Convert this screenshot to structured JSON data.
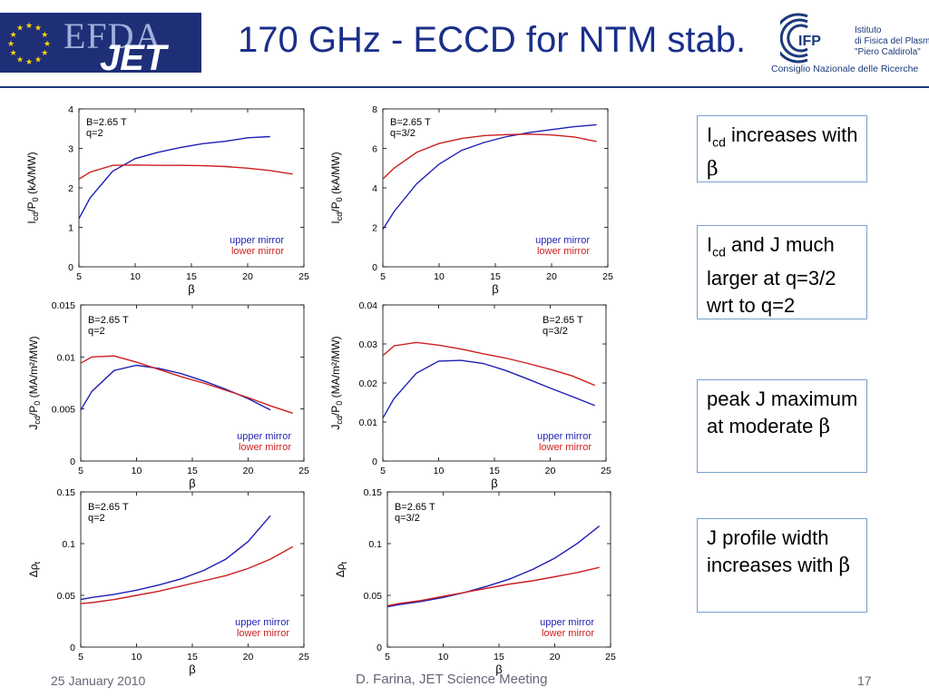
{
  "slide": {
    "title": "170 GHz - ECCD for NTM stab.",
    "logo_left": {
      "efda": "EFDA",
      "jet": "JET"
    },
    "logo_right": {
      "mark": "IFP",
      "line1": "Istituto",
      "line2": "di Fisica del Plasma",
      "line3": "\"Piero Caldirola\"",
      "line4": "Consiglio Nazionale delle Ricerche"
    },
    "footer": {
      "date": "25 January 2010",
      "center": "D. Farina, JET Science Meeting",
      "page": "17"
    },
    "colors": {
      "title": "#1a2f8a",
      "upper_mirror": "#1f1fb4",
      "lower_mirror": "#cc1f1f",
      "note_border": "#7aa0cc"
    }
  },
  "notes": [
    {
      "a": "I",
      "sub": "cd",
      "b": " increases with ",
      "c": "β"
    },
    {
      "a": "I",
      "sub": "cd",
      "b": " and J much larger at q=3/2 wrt to q=2",
      "c": ""
    },
    {
      "a": "",
      "sub": "",
      "b": "peak J maximum at moderate ",
      "c": "β"
    },
    {
      "a": "",
      "sub": "",
      "b": "J profile width increases with ",
      "c": "β"
    }
  ],
  "chart_data": [
    {
      "type": "line",
      "annotation": [
        "B=2.65 T",
        "q=2"
      ],
      "xlabel": "β",
      "ylabel": {
        "main": "I",
        "sub1": "cd",
        "mid": "/P",
        "sub2": "0",
        "tail": " (kA/MW)"
      },
      "xlim": [
        5,
        25
      ],
      "ylim": [
        0,
        4
      ],
      "xticks": [
        "5",
        "10",
        "15",
        "20",
        "25"
      ],
      "yticks": [
        "0",
        "1",
        "2",
        "3",
        "4"
      ],
      "series": [
        {
          "name": "upper mirror",
          "color": "#1f1fb4",
          "x": [
            5,
            6,
            8,
            10,
            12,
            14,
            16,
            18,
            20,
            22
          ],
          "y": [
            1.22,
            1.75,
            2.42,
            2.74,
            2.9,
            3.02,
            3.12,
            3.18,
            3.27,
            3.3
          ]
        },
        {
          "name": "lower mirror",
          "color": "#cc1f1f",
          "x": [
            5,
            6,
            8,
            10,
            12,
            14,
            16,
            18,
            20,
            22,
            24
          ],
          "y": [
            2.22,
            2.4,
            2.57,
            2.58,
            2.57,
            2.57,
            2.56,
            2.54,
            2.5,
            2.44,
            2.35
          ]
        }
      ]
    },
    {
      "type": "line",
      "annotation": [
        "B=2.65 T",
        "q=3/2"
      ],
      "xlabel": "β",
      "ylabel": {
        "main": "I",
        "sub1": "cd",
        "mid": "/P",
        "sub2": "0",
        "tail": " (kA/MW)"
      },
      "xlim": [
        5,
        25
      ],
      "ylim": [
        0,
        8
      ],
      "xticks": [
        "5",
        "10",
        "15",
        "20",
        "25"
      ],
      "yticks": [
        "0",
        "2",
        "4",
        "6",
        "8"
      ],
      "series": [
        {
          "name": "upper mirror",
          "color": "#1f1fb4",
          "x": [
            5,
            6,
            8,
            10,
            12,
            14,
            16,
            18,
            20,
            22,
            24
          ],
          "y": [
            1.9,
            2.8,
            4.2,
            5.2,
            5.9,
            6.3,
            6.6,
            6.8,
            6.95,
            7.1,
            7.2
          ]
        },
        {
          "name": "lower mirror",
          "color": "#cc1f1f",
          "x": [
            5,
            6,
            8,
            10,
            12,
            14,
            16,
            18,
            20,
            22,
            24
          ],
          "y": [
            4.45,
            5.0,
            5.8,
            6.25,
            6.5,
            6.65,
            6.7,
            6.72,
            6.68,
            6.58,
            6.35
          ]
        }
      ]
    },
    {
      "type": "line",
      "annotation": [
        "B=2.65 T",
        "q=2"
      ],
      "xlabel": "β",
      "ylabel": {
        "main": "J",
        "sub1": "cd",
        "mid": "/P",
        "sub2": "0",
        "tail": " (MA/m²/MW)"
      },
      "xlim": [
        5,
        25
      ],
      "ylim": [
        0,
        0.015
      ],
      "xticks": [
        "5",
        "10",
        "15",
        "20",
        "25"
      ],
      "yticks": [
        "0",
        "0.005",
        "0.01",
        "0.015"
      ],
      "series": [
        {
          "name": "upper mirror",
          "color": "#1f1fb4",
          "x": [
            5,
            6,
            8,
            10,
            12,
            14,
            16,
            18,
            20,
            22
          ],
          "y": [
            0.0049,
            0.0067,
            0.0087,
            0.0092,
            0.0089,
            0.0084,
            0.0077,
            0.0069,
            0.006,
            0.0049
          ]
        },
        {
          "name": "lower mirror",
          "color": "#cc1f1f",
          "x": [
            5,
            6,
            8,
            10,
            12,
            14,
            16,
            18,
            20,
            22,
            24
          ],
          "y": [
            0.0094,
            0.01,
            0.0101,
            0.0095,
            0.0088,
            0.0081,
            0.0075,
            0.0068,
            0.0061,
            0.0053,
            0.0046
          ]
        }
      ]
    },
    {
      "type": "line",
      "annotation": [
        "B=2.65 T",
        "q=3/2"
      ],
      "xlabel": "β",
      "ylabel": {
        "main": "J",
        "sub1": "cd",
        "mid": "/P",
        "sub2": "0",
        "tail": " (MA/m²/MW)"
      },
      "xlim": [
        5,
        25
      ],
      "ylim": [
        0,
        0.04
      ],
      "xticks": [
        "5",
        "10",
        "15",
        "20",
        "25"
      ],
      "yticks": [
        "0",
        "0.01",
        "0.02",
        "0.03",
        "0.04"
      ],
      "series": [
        {
          "name": "upper mirror",
          "color": "#1f1fb4",
          "x": [
            5,
            6,
            8,
            10,
            12,
            14,
            16,
            18,
            20,
            22,
            24
          ],
          "y": [
            0.011,
            0.016,
            0.0225,
            0.0256,
            0.0258,
            0.025,
            0.0232,
            0.021,
            0.0187,
            0.0165,
            0.0142
          ]
        },
        {
          "name": "lower mirror",
          "color": "#cc1f1f",
          "x": [
            5,
            6,
            8,
            10,
            12,
            14,
            16,
            18,
            20,
            22,
            24
          ],
          "y": [
            0.027,
            0.0295,
            0.0304,
            0.0297,
            0.0287,
            0.0275,
            0.0264,
            0.025,
            0.0235,
            0.0218,
            0.0194
          ]
        }
      ]
    },
    {
      "type": "line",
      "annotation": [
        "B=2.65 T",
        "q=2"
      ],
      "xlabel": "β",
      "ylabel": {
        "main": "Δρ",
        "sub1": "t",
        "mid": "",
        "sub2": "",
        "tail": ""
      },
      "xlim": [
        5,
        25
      ],
      "ylim": [
        0,
        0.15
      ],
      "xticks": [
        "5",
        "10",
        "15",
        "20",
        "25"
      ],
      "yticks": [
        "0",
        "0.05",
        "0.1",
        "0.15"
      ],
      "series": [
        {
          "name": "upper mirror",
          "color": "#1f1fb4",
          "x": [
            5,
            6,
            8,
            10,
            12,
            14,
            16,
            18,
            20,
            22
          ],
          "y": [
            0.046,
            0.048,
            0.051,
            0.055,
            0.06,
            0.066,
            0.074,
            0.085,
            0.102,
            0.127
          ]
        },
        {
          "name": "lower mirror",
          "color": "#cc1f1f",
          "x": [
            5,
            6,
            8,
            10,
            12,
            14,
            16,
            18,
            20,
            22,
            24
          ],
          "y": [
            0.042,
            0.043,
            0.046,
            0.05,
            0.054,
            0.059,
            0.064,
            0.069,
            0.076,
            0.085,
            0.097
          ]
        }
      ]
    },
    {
      "type": "line",
      "annotation": [
        "B=2.65 T",
        "q=3/2"
      ],
      "xlabel": "β",
      "ylabel": {
        "main": "Δρ",
        "sub1": "t",
        "mid": "",
        "sub2": "",
        "tail": ""
      },
      "xlim": [
        5,
        25
      ],
      "ylim": [
        0,
        0.15
      ],
      "xticks": [
        "5",
        "10",
        "15",
        "20",
        "25"
      ],
      "yticks": [
        "0",
        "0.05",
        "0.1",
        "0.15"
      ],
      "series": [
        {
          "name": "upper mirror",
          "color": "#1f1fb4",
          "x": [
            5,
            6,
            8,
            10,
            12,
            14,
            16,
            18,
            20,
            22,
            24
          ],
          "y": [
            0.039,
            0.041,
            0.044,
            0.048,
            0.053,
            0.059,
            0.066,
            0.075,
            0.086,
            0.1,
            0.117
          ]
        },
        {
          "name": "lower mirror",
          "color": "#cc1f1f",
          "x": [
            5,
            6,
            8,
            10,
            12,
            14,
            16,
            18,
            20,
            22,
            24
          ],
          "y": [
            0.04,
            0.042,
            0.045,
            0.049,
            0.053,
            0.057,
            0.061,
            0.064,
            0.068,
            0.072,
            0.077
          ]
        }
      ]
    }
  ]
}
